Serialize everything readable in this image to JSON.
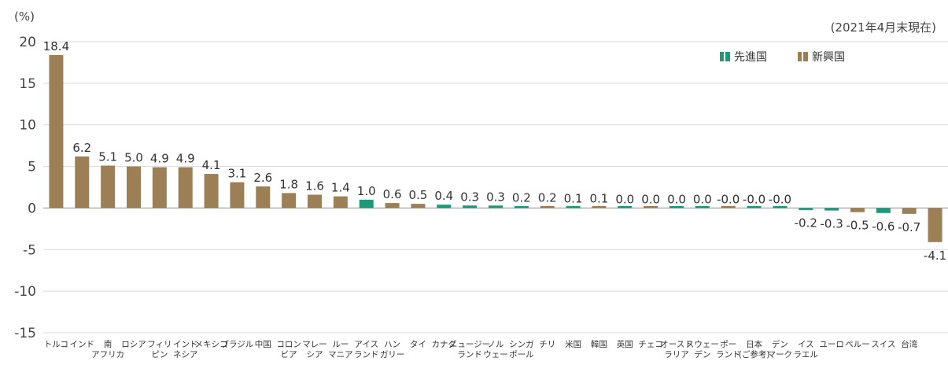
{
  "chart_data": {
    "type": "bar",
    "unit_label": "(%)",
    "note": "(2021年4月末現在)",
    "ylim": [
      -15,
      20
    ],
    "yticks": [
      20,
      15,
      10,
      5,
      0,
      -5,
      -10,
      -15
    ],
    "grid": true,
    "legend_position": "top-right",
    "colors": {
      "developed": "#1a9a78",
      "emerging": "#9c7f54"
    },
    "series": [
      {
        "key": "developed",
        "name": "先進国"
      },
      {
        "key": "emerging",
        "name": "新興国"
      }
    ],
    "categories": [
      {
        "label": [
          "トルコ"
        ],
        "value": 18.4,
        "text": "18.4",
        "group": "emerging"
      },
      {
        "label": [
          "インド"
        ],
        "value": 6.2,
        "text": "6.2",
        "group": "emerging"
      },
      {
        "label": [
          "南",
          "アフリカ"
        ],
        "value": 5.1,
        "text": "5.1",
        "group": "emerging"
      },
      {
        "label": [
          "ロシア"
        ],
        "value": 5.0,
        "text": "5.0",
        "group": "emerging"
      },
      {
        "label": [
          "フィリ",
          "ピン"
        ],
        "value": 4.9,
        "text": "4.9",
        "group": "emerging"
      },
      {
        "label": [
          "インド",
          "ネシア"
        ],
        "value": 4.9,
        "text": "4.9",
        "group": "emerging"
      },
      {
        "label": [
          "メキシコ"
        ],
        "value": 4.1,
        "text": "4.1",
        "group": "emerging"
      },
      {
        "label": [
          "ブラジル"
        ],
        "value": 3.1,
        "text": "3.1",
        "group": "emerging"
      },
      {
        "label": [
          "中国"
        ],
        "value": 2.6,
        "text": "2.6",
        "group": "emerging"
      },
      {
        "label": [
          "コロン",
          "ビア"
        ],
        "value": 1.8,
        "text": "1.8",
        "group": "emerging"
      },
      {
        "label": [
          "マレー",
          "シア"
        ],
        "value": 1.6,
        "text": "1.6",
        "group": "emerging"
      },
      {
        "label": [
          "ルー",
          "マニア"
        ],
        "value": 1.4,
        "text": "1.4",
        "group": "emerging"
      },
      {
        "label": [
          "アイス",
          "ランド"
        ],
        "value": 1.0,
        "text": "1.0",
        "group": "developed"
      },
      {
        "label": [
          "ハン",
          "ガリー"
        ],
        "value": 0.6,
        "text": "0.6",
        "group": "emerging"
      },
      {
        "label": [
          "タイ"
        ],
        "value": 0.5,
        "text": "0.5",
        "group": "emerging"
      },
      {
        "label": [
          "カナダ"
        ],
        "value": 0.4,
        "text": "0.4",
        "group": "developed"
      },
      {
        "label": [
          "ニュージー",
          "ランド"
        ],
        "value": 0.3,
        "text": "0.3",
        "group": "developed"
      },
      {
        "label": [
          "ノル",
          "ウェー"
        ],
        "value": 0.3,
        "text": "0.3",
        "group": "developed"
      },
      {
        "label": [
          "シンガ",
          "ポール"
        ],
        "value": 0.2,
        "text": "0.2",
        "group": "developed"
      },
      {
        "label": [
          "チリ"
        ],
        "value": 0.2,
        "text": "0.2",
        "group": "emerging"
      },
      {
        "label": [
          "米国"
        ],
        "value": 0.1,
        "text": "0.1",
        "group": "developed"
      },
      {
        "label": [
          "韓国"
        ],
        "value": 0.1,
        "text": "0.1",
        "group": "emerging"
      },
      {
        "label": [
          "英国"
        ],
        "value": 0.0,
        "text": "0.0",
        "group": "developed"
      },
      {
        "label": [
          "チェコ"
        ],
        "value": 0.0,
        "text": "0.0",
        "group": "emerging"
      },
      {
        "label": [
          "オースト",
          "ラリア"
        ],
        "value": 0.0,
        "text": "0.0",
        "group": "developed"
      },
      {
        "label": [
          "スウェー",
          "デン"
        ],
        "value": 0.0,
        "text": "0.0",
        "group": "developed"
      },
      {
        "label": [
          "ポー",
          "ランド"
        ],
        "value": -0.0,
        "text": "-0.0",
        "group": "emerging"
      },
      {
        "label": [
          "日本",
          "(ご参考)"
        ],
        "value": -0.0,
        "text": "-0.0",
        "group": "developed"
      },
      {
        "label": [
          "デン",
          "マーク"
        ],
        "value": -0.0,
        "text": "-0.0",
        "group": "developed"
      },
      {
        "label": [
          "イス",
          "ラエル"
        ],
        "value": -0.2,
        "text": "-0.2",
        "group": "developed"
      },
      {
        "label": [
          "ユーロ"
        ],
        "value": -0.3,
        "text": "-0.3",
        "group": "developed"
      },
      {
        "label": [
          "ペルー"
        ],
        "value": -0.5,
        "text": "-0.5",
        "group": "emerging"
      },
      {
        "label": [
          "スイス"
        ],
        "value": -0.6,
        "text": "-0.6",
        "group": "developed"
      },
      {
        "label": [
          "台湾"
        ],
        "value": -0.7,
        "text": "-0.7",
        "group": "emerging"
      },
      {
        "label": [
          ""
        ],
        "value": -4.1,
        "text": "-4.1",
        "group": "emerging"
      }
    ]
  }
}
